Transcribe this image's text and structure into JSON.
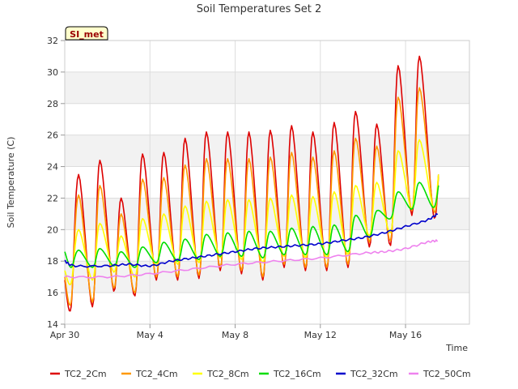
{
  "chart_data": {
    "type": "line",
    "title": "Soil Temperatures Set 2",
    "xlabel": "Time",
    "ylabel": "Soil Temperature (C)",
    "badge": "SI_met",
    "ylim": [
      14,
      32
    ],
    "xlim": [
      "2023-04-30",
      "2023-05-19"
    ],
    "x_ticks": [
      {
        "date": "2023-04-30",
        "label": "Apr 30"
      },
      {
        "date": "2023-05-04",
        "label": "May 4"
      },
      {
        "date": "2023-05-08",
        "label": "May 8"
      },
      {
        "date": "2023-05-12",
        "label": "May 12"
      },
      {
        "date": "2023-05-16",
        "label": "May 16"
      }
    ],
    "y_ticks": [
      14,
      16,
      18,
      20,
      22,
      24,
      26,
      28,
      30,
      32
    ],
    "grid": "horizontal alternating bands",
    "legend_position": "bottom",
    "series": [
      {
        "name": "TC2_2Cm",
        "color": "#dd0000",
        "daily_min": [
          15.1,
          15.1,
          16.1,
          15.8,
          16.8,
          16.8,
          16.9,
          17.4,
          17.2,
          16.8,
          17.6,
          17.4,
          17.4,
          17.6,
          18.9,
          19.0,
          20.9,
          21.0
        ],
        "daily_max": [
          23.5,
          24.4,
          22.0,
          24.8,
          24.9,
          25.8,
          26.2,
          26.2,
          26.2,
          26.3,
          26.6,
          26.2,
          26.8,
          27.5,
          26.7,
          30.4,
          31.0
        ],
        "start": 16.8,
        "end": 23.5
      },
      {
        "name": "TC2_4Cm",
        "color": "#ff9900",
        "daily_min": [
          15.4,
          15.4,
          16.3,
          16.0,
          17.0,
          17.0,
          17.1,
          17.6,
          17.4,
          17.0,
          17.8,
          17.6,
          17.6,
          17.8,
          19.2,
          19.3,
          21.2,
          21.3
        ],
        "daily_max": [
          22.2,
          22.8,
          21.0,
          23.2,
          23.3,
          24.1,
          24.5,
          24.5,
          24.5,
          24.6,
          24.9,
          24.6,
          25.0,
          25.8,
          25.3,
          28.4,
          29.0
        ],
        "start": 17.0,
        "end": 23.3
      },
      {
        "name": "TC2_8Cm",
        "color": "#ffff00",
        "daily_min": [
          16.6,
          16.8,
          17.3,
          17.0,
          17.7,
          17.8,
          17.9,
          18.2,
          18.1,
          17.9,
          18.3,
          18.2,
          18.2,
          18.4,
          19.6,
          19.8,
          21.3,
          21.4
        ],
        "daily_max": [
          20.0,
          20.4,
          19.6,
          20.7,
          21.0,
          21.5,
          21.8,
          21.9,
          21.9,
          22.0,
          22.2,
          22.1,
          22.4,
          22.8,
          23.0,
          25.0,
          25.7
        ],
        "start": 17.4,
        "end": 23.5
      },
      {
        "name": "TC2_16Cm",
        "color": "#00dd00",
        "daily_min": [
          17.6,
          17.6,
          17.7,
          17.6,
          17.9,
          18.0,
          18.1,
          18.3,
          18.3,
          18.2,
          18.4,
          18.4,
          18.4,
          18.6,
          19.5,
          20.7,
          21.3,
          21.4
        ],
        "daily_max": [
          18.7,
          18.8,
          18.6,
          18.9,
          19.2,
          19.4,
          19.7,
          19.8,
          19.9,
          19.9,
          20.1,
          20.2,
          20.3,
          20.9,
          21.2,
          22.4,
          23.0
        ],
        "start": 18.6,
        "end": 22.8
      },
      {
        "name": "TC2_32Cm",
        "color": "#0000cc",
        "points": [
          [
            0,
            18.0
          ],
          [
            0.5,
            17.7
          ],
          [
            2,
            17.7
          ],
          [
            3,
            17.8
          ],
          [
            4,
            17.7
          ],
          [
            5,
            18.0
          ],
          [
            6,
            18.2
          ],
          [
            7,
            18.4
          ],
          [
            8,
            18.6
          ],
          [
            9,
            18.8
          ],
          [
            10,
            18.9
          ],
          [
            11,
            19.0
          ],
          [
            12,
            19.1
          ],
          [
            13,
            19.3
          ],
          [
            14,
            19.5
          ],
          [
            15,
            19.8
          ],
          [
            16,
            20.2
          ],
          [
            17,
            20.6
          ],
          [
            17.5,
            21.0
          ]
        ]
      },
      {
        "name": "TC2_50Cm",
        "color": "#ee82ee",
        "points": [
          [
            0,
            17.0
          ],
          [
            2,
            17.0
          ],
          [
            4,
            17.2
          ],
          [
            6,
            17.5
          ],
          [
            8,
            17.8
          ],
          [
            10,
            18.0
          ],
          [
            12,
            18.2
          ],
          [
            14,
            18.5
          ],
          [
            15,
            18.6
          ],
          [
            16,
            18.8
          ],
          [
            17,
            19.2
          ],
          [
            17.5,
            19.3
          ]
        ]
      }
    ]
  }
}
